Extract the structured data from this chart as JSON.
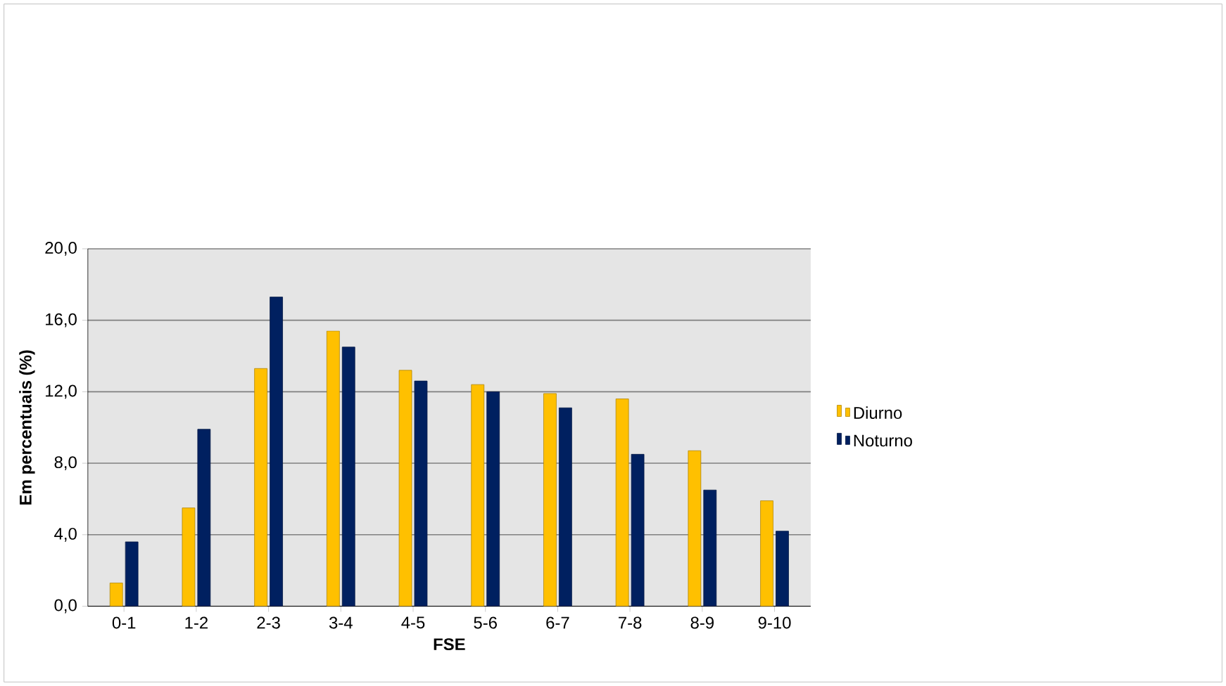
{
  "chart_data": {
    "type": "bar",
    "xlabel": "FSE",
    "ylabel": "Em percentuais (%)",
    "categories": [
      "0-1",
      "1-2",
      "2-3",
      "3-4",
      "4-5",
      "5-6",
      "6-7",
      "7-8",
      "8-9",
      "9-10"
    ],
    "series": [
      {
        "name": "Diurno",
        "color": "#ffc000",
        "values": [
          1.3,
          5.5,
          13.3,
          15.4,
          13.2,
          12.4,
          11.9,
          11.6,
          8.7,
          5.9
        ]
      },
      {
        "name": "Noturno",
        "color": "#002060",
        "values": [
          3.6,
          9.9,
          17.3,
          14.5,
          12.6,
          12.0,
          11.1,
          8.5,
          6.5,
          4.2
        ]
      }
    ],
    "ylim": [
      0,
      20
    ],
    "yticks": [
      {
        "value": 0,
        "label": "0,0"
      },
      {
        "value": 4,
        "label": "4,0"
      },
      {
        "value": 8,
        "label": "8,0"
      },
      {
        "value": 12,
        "label": "12,0"
      },
      {
        "value": 16,
        "label": "16,0"
      },
      {
        "value": 20,
        "label": "20,0"
      }
    ],
    "grid": "y",
    "legend": "right"
  }
}
